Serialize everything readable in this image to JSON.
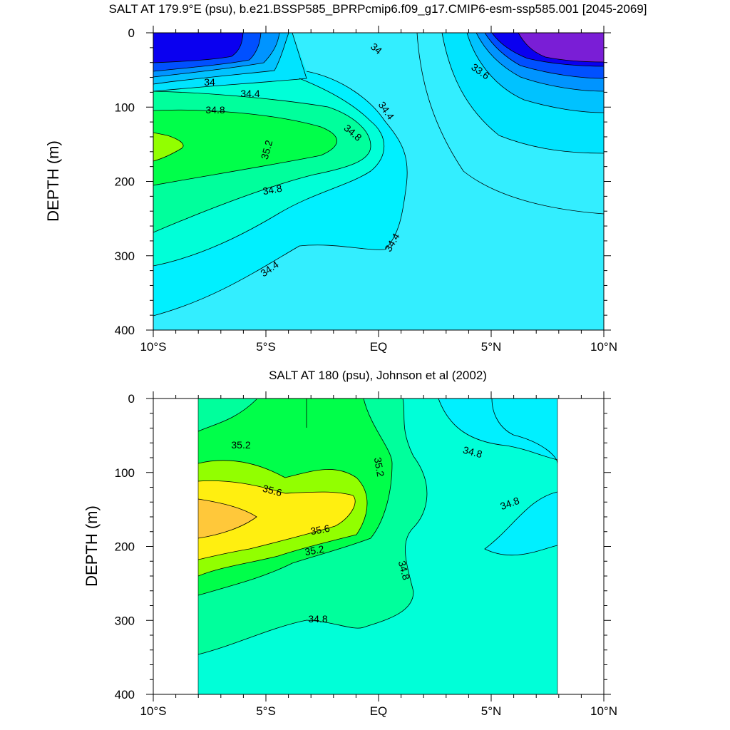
{
  "chart_data": [
    {
      "type": "contour",
      "title": "SALT AT 179.9°E (psu), b.e21.BSSP585_BPRPcmip6.f09_g17.CMIP6-esm-ssp585.001 [2045-2069]",
      "xlabel": "",
      "ylabel": "DEPTH (m)",
      "xlim": [
        -10,
        10
      ],
      "ylim": [
        0,
        400
      ],
      "y_inverted": true,
      "x_ticks": [
        -10,
        -5,
        0,
        5,
        10
      ],
      "x_tick_labels": [
        "10°S",
        "5°S",
        "EQ",
        "5°N",
        "10°N"
      ],
      "y_ticks": [
        0,
        100,
        200,
        300,
        400
      ],
      "y_tick_labels": [
        "0",
        "100",
        "200",
        "300",
        "400"
      ],
      "contour_interval": 0.2,
      "contour_labels": [
        "34",
        "34.4",
        "34.8",
        "35.2",
        "34.8",
        "34.4",
        "34.4",
        "34",
        "33.6",
        "34.4",
        "34.8"
      ]
    },
    {
      "type": "contour",
      "title": "SALT AT 180 (psu), Johnson et al (2002)",
      "xlabel": "",
      "ylabel": "DEPTH (m)",
      "xlim": [
        -10,
        10
      ],
      "ylim": [
        0,
        400
      ],
      "y_inverted": true,
      "data_extent_x": [
        -8,
        8
      ],
      "x_ticks": [
        -10,
        -5,
        0,
        5,
        10
      ],
      "x_tick_labels": [
        "10°S",
        "5°S",
        "EQ",
        "5°N",
        "10°N"
      ],
      "y_ticks": [
        0,
        100,
        200,
        300,
        400
      ],
      "y_tick_labels": [
        "0",
        "100",
        "200",
        "300",
        "400"
      ],
      "contour_interval": 0.2,
      "contour_labels": [
        "35.2",
        "35.6",
        "35.6",
        "35.2",
        "35.2",
        "34.8",
        "34.8",
        "34.8",
        "34.8"
      ]
    }
  ],
  "colors": {
    "c33_2": "#7a1ed6",
    "c33_4": "#0a00f0",
    "c33_6": "#0050ff",
    "c33_8": "#0094ff",
    "c34_0": "#00c2ff",
    "c34_2": "#00e4ff",
    "c34_4": "#33eeff",
    "c34_6": "#00f0ff",
    "c34_8": "#00ffd8",
    "c35_0": "#00ff9c",
    "c35_2": "#00ff4a",
    "c35_4": "#92ff00",
    "c35_6": "#ffef10",
    "c35_8": "#ffc83a"
  }
}
